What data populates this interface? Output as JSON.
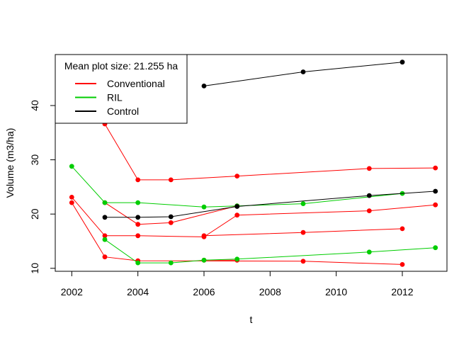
{
  "chart_data": {
    "type": "line",
    "title": "",
    "xlabel": "t",
    "ylabel": "Volume (m3/ha)",
    "xlim": [
      2001.5,
      2013.35
    ],
    "ylim": [
      9.45,
      49.4
    ],
    "x_ticks": [
      2002,
      2004,
      2006,
      2008,
      2010,
      2012
    ],
    "y_ticks": [
      10,
      20,
      30,
      40
    ],
    "grid": false,
    "legend": {
      "position": "top-left",
      "title": "Mean plot size: 21.255 ha",
      "entries": [
        {
          "label": "Conventional",
          "color": "#FF0000"
        },
        {
          "label": "RIL",
          "color": "#00CD00"
        },
        {
          "label": "Control",
          "color": "#000000"
        }
      ]
    },
    "series": [
      {
        "group": "Conventional",
        "color": "#FF0000",
        "points": [
          [
            2002,
            23.1
          ],
          [
            2003,
            16.0
          ],
          [
            2004,
            16.0
          ],
          [
            2006,
            15.8
          ],
          [
            2007,
            19.8
          ],
          [
            2011,
            20.6
          ],
          [
            2013,
            21.7
          ]
        ]
      },
      {
        "group": "Conventional",
        "color": "#FF0000",
        "points": [
          [
            2002,
            22.1
          ],
          [
            2003,
            12.1
          ],
          [
            2004,
            11.4
          ],
          [
            2009,
            11.3
          ],
          [
            2012,
            10.7
          ]
        ]
      },
      {
        "group": "Conventional",
        "color": "#FF0000",
        "points": [
          [
            2003,
            22.1
          ],
          [
            2004,
            18.1
          ],
          [
            2005,
            18.4
          ],
          [
            2007,
            21.5
          ]
        ]
      },
      {
        "group": "Conventional",
        "color": "#FF0000",
        "points": [
          [
            2003,
            36.6
          ],
          [
            2004,
            26.3
          ],
          [
            2005,
            26.3
          ],
          [
            2007,
            27.0
          ],
          [
            2011,
            28.4
          ],
          [
            2013,
            28.5
          ]
        ]
      },
      {
        "group": "Conventional",
        "color": "#FF0000",
        "points": [
          [
            2006,
            16.0
          ],
          [
            2009,
            16.6
          ],
          [
            2012,
            17.3
          ]
        ]
      },
      {
        "group": "Conventional",
        "color": "#FF0000",
        "points": [
          [
            2006,
            11.5
          ],
          [
            2007,
            11.5
          ]
        ]
      },
      {
        "group": "RIL",
        "color": "#00CD00",
        "points": [
          [
            2002,
            28.8
          ],
          [
            2003,
            22.1
          ],
          [
            2004,
            22.1
          ],
          [
            2006,
            21.3
          ],
          [
            2007,
            21.5
          ],
          [
            2009,
            21.9
          ],
          [
            2012,
            23.8
          ]
        ]
      },
      {
        "group": "RIL",
        "color": "#00CD00",
        "points": [
          [
            2003,
            15.3
          ],
          [
            2004,
            11.0
          ],
          [
            2005,
            11.0
          ],
          [
            2006,
            11.5
          ],
          [
            2007,
            11.7
          ],
          [
            2011,
            13.0
          ],
          [
            2013,
            13.8
          ]
        ]
      },
      {
        "group": "Control",
        "color": "#000000",
        "points": [
          [
            2003,
            19.4
          ],
          [
            2004,
            19.4
          ],
          [
            2005,
            19.5
          ],
          [
            2007,
            21.4
          ],
          [
            2011,
            23.4
          ],
          [
            2013,
            24.2
          ]
        ]
      },
      {
        "group": "Control",
        "color": "#000000",
        "points": [
          [
            2006,
            43.6
          ],
          [
            2009,
            46.2
          ],
          [
            2012,
            48.0
          ]
        ]
      }
    ]
  }
}
